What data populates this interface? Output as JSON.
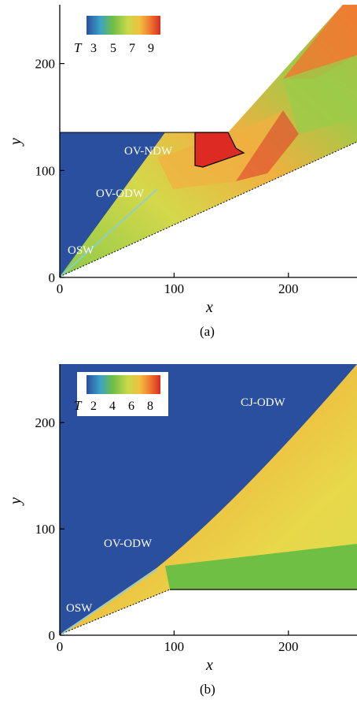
{
  "panels": [
    {
      "caption": "(a)",
      "xlabel": "x",
      "ylabel": "y",
      "xticks": [
        "0",
        "100",
        "200"
      ],
      "yticks": [
        "0",
        "100",
        "200"
      ],
      "xlim": [
        0,
        260
      ],
      "ylim": [
        0,
        255
      ],
      "colorbar": {
        "symbol": "T",
        "ticks": [
          "3",
          "5",
          "7",
          "9"
        ]
      },
      "annotations": [
        "OV-NDW",
        "OV-ODW",
        "OSW"
      ]
    },
    {
      "caption": "(b)",
      "xlabel": "x",
      "ylabel": "y",
      "xticks": [
        "0",
        "100",
        "200"
      ],
      "yticks": [
        "0",
        "100",
        "200"
      ],
      "xlim": [
        0,
        260
      ],
      "ylim": [
        0,
        255
      ],
      "colorbar": {
        "symbol": "T",
        "ticks": [
          "2",
          "4",
          "6",
          "8"
        ]
      },
      "annotations": [
        "CJ-ODW",
        "OV-ODW",
        "OSW"
      ]
    }
  ],
  "colors": {
    "background_field": "#2a4f9e",
    "hot": "#e0402a",
    "warm": "#f0a23a",
    "mid": "#e6d84a",
    "cool": "#6fbf45"
  }
}
